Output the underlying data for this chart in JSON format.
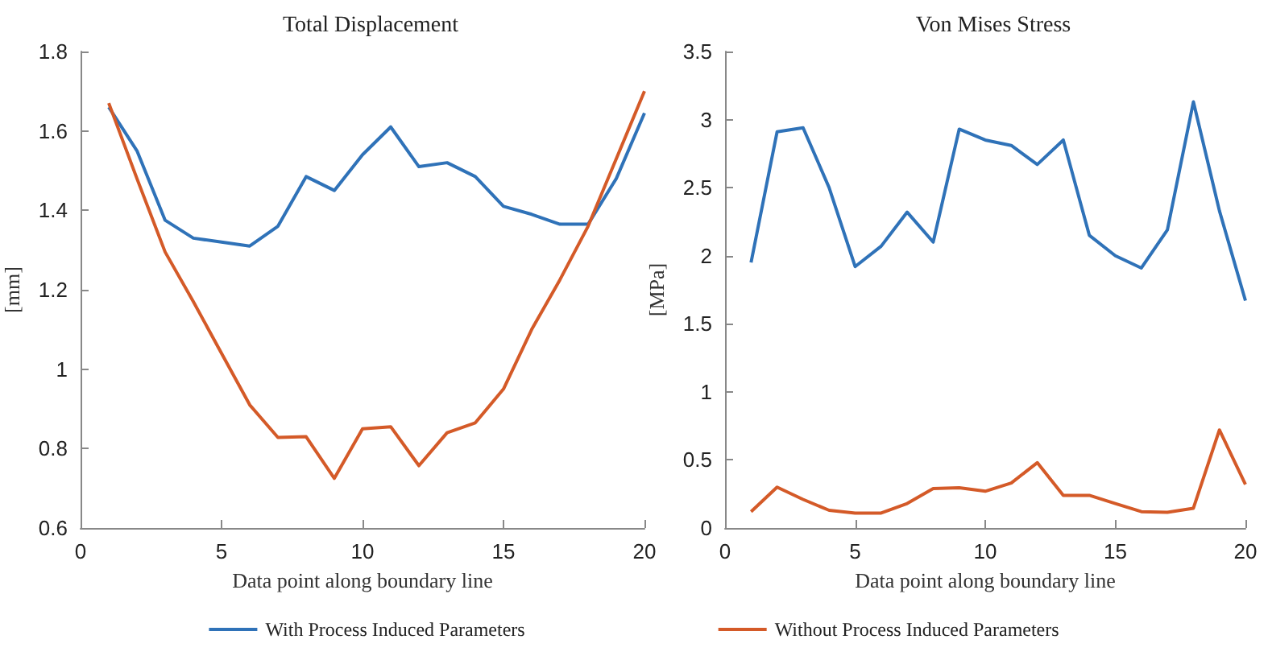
{
  "chart_data": [
    {
      "type": "line",
      "title": "Total Displacement",
      "xlabel": "Data point along boundary line",
      "ylabel": "[mm]",
      "x": [
        1,
        2,
        3,
        4,
        5,
        6,
        7,
        8,
        9,
        10,
        11,
        12,
        13,
        14,
        15,
        16,
        17,
        18,
        19,
        20
      ],
      "xlim": [
        0,
        20
      ],
      "xticks": [
        0,
        5,
        10,
        15,
        20
      ],
      "ylim": [
        0.6,
        1.8
      ],
      "yticks": [
        0.6,
        0.8,
        1,
        1.2,
        1.4,
        1.6,
        1.8
      ],
      "legend": "bottom",
      "grid": false,
      "marker": "none",
      "series": [
        {
          "name": "With Process Induced Parameters",
          "color": "#2f72b8",
          "values": [
            1.66,
            1.55,
            1.375,
            1.33,
            1.32,
            1.31,
            1.36,
            1.485,
            1.45,
            1.54,
            1.61,
            1.51,
            1.52,
            1.485,
            1.41,
            1.39,
            1.365,
            1.365,
            1.48,
            1.645
          ]
        },
        {
          "name": "Without Process Induced Parameters",
          "color": "#d45a28",
          "values": [
            1.67,
            1.48,
            1.295,
            1.17,
            1.04,
            0.91,
            0.828,
            0.83,
            0.725,
            0.85,
            0.855,
            0.757,
            0.84,
            0.865,
            0.95,
            1.1,
            1.225,
            1.36,
            1.53,
            1.7
          ]
        }
      ]
    },
    {
      "type": "line",
      "title": "Von Mises Stress",
      "xlabel": "Data point along boundary line",
      "ylabel": "[MPa]",
      "x": [
        1,
        2,
        3,
        4,
        5,
        6,
        7,
        8,
        9,
        10,
        11,
        12,
        13,
        14,
        15,
        16,
        17,
        18,
        19,
        20
      ],
      "xlim": [
        0,
        20
      ],
      "xticks": [
        0,
        5,
        10,
        15,
        20
      ],
      "ylim": [
        0,
        3.5
      ],
      "yticks": [
        0,
        0.5,
        1,
        1.5,
        2,
        2.5,
        3,
        3.5
      ],
      "grid": false,
      "marker": "none",
      "series": [
        {
          "color": "#2f72b8",
          "values": [
            1.95,
            2.91,
            2.94,
            2.5,
            1.92,
            2.07,
            2.32,
            2.1,
            2.93,
            2.85,
            2.81,
            2.67,
            2.85,
            2.15,
            2.0,
            1.91,
            2.19,
            3.13,
            2.33,
            1.67
          ]
        },
        {
          "color": "#d45a28",
          "values": [
            0.12,
            0.3,
            0.21,
            0.13,
            0.11,
            0.11,
            0.18,
            0.29,
            0.295,
            0.27,
            0.33,
            0.48,
            0.24,
            0.24,
            0.18,
            0.12,
            0.115,
            0.145,
            0.72,
            0.32
          ]
        }
      ]
    }
  ]
}
